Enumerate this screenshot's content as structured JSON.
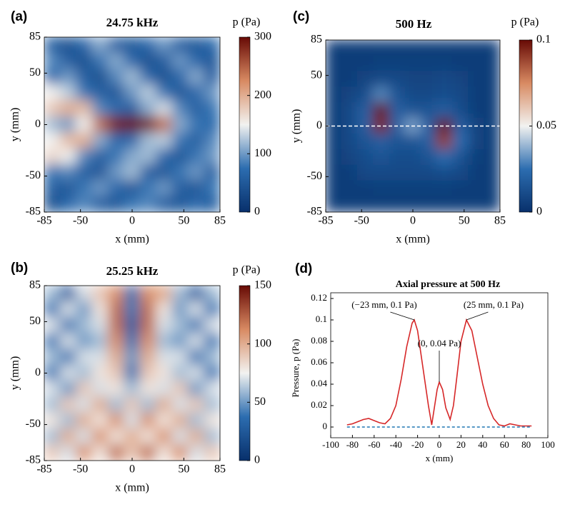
{
  "chart_data": [
    {
      "type": "heatmap",
      "panel_label": "(a)",
      "title": "24.75 kHz",
      "xlabel": "x (mm)",
      "ylabel": "y (mm)",
      "colorbar_label": "p (Pa)",
      "xlim": [
        -85,
        85
      ],
      "ylim": [
        -85,
        85
      ],
      "xticks": [
        -85,
        -50,
        0,
        50,
        85
      ],
      "yticks": [
        -85,
        -50,
        0,
        50,
        85
      ],
      "clim": [
        0,
        300
      ],
      "cticks": [
        0,
        100,
        200,
        300
      ],
      "colormap": [
        "#08306b",
        "#2c6db0",
        "#f2f2f0",
        "#d88a62",
        "#670a05"
      ],
      "z": [
        [
          60,
          40,
          70,
          110,
          60,
          50,
          70,
          100,
          60,
          50,
          70
        ],
        [
          90,
          60,
          40,
          80,
          110,
          70,
          40,
          60,
          100,
          70,
          50
        ],
        [
          70,
          100,
          60,
          40,
          90,
          120,
          70,
          40,
          70,
          110,
          60
        ],
        [
          150,
          130,
          80,
          60,
          50,
          100,
          130,
          80,
          50,
          70,
          100
        ],
        [
          180,
          200,
          190,
          90,
          70,
          60,
          110,
          140,
          90,
          60,
          80
        ],
        [
          120,
          100,
          150,
          240,
          290,
          300,
          290,
          240,
          110,
          80,
          70
        ],
        [
          150,
          190,
          200,
          110,
          70,
          70,
          120,
          130,
          80,
          60,
          90
        ],
        [
          170,
          150,
          90,
          60,
          80,
          110,
          120,
          70,
          50,
          80,
          100
        ],
        [
          80,
          90,
          60,
          50,
          100,
          120,
          60,
          50,
          80,
          100,
          60
        ],
        [
          60,
          50,
          80,
          100,
          70,
          50,
          80,
          100,
          60,
          50,
          80
        ],
        [
          40,
          70,
          90,
          60,
          50,
          80,
          90,
          60,
          50,
          70,
          60
        ]
      ]
    },
    {
      "type": "heatmap",
      "panel_label": "(b)",
      "title": "25.25 kHz",
      "xlabel": "x (mm)",
      "ylabel": "y (mm)",
      "colorbar_label": "p (Pa)",
      "xlim": [
        -85,
        85
      ],
      "ylim": [
        -85,
        85
      ],
      "xticks": [
        -85,
        -50,
        0,
        50,
        85
      ],
      "yticks": [
        -85,
        -50,
        0,
        50,
        85
      ],
      "clim": [
        0,
        150
      ],
      "cticks": [
        0,
        50,
        100,
        150
      ],
      "colormap": [
        "#08306b",
        "#2c6db0",
        "#f2f2f0",
        "#d88a62",
        "#670a05"
      ],
      "z": [
        [
          60,
          30,
          70,
          90,
          110,
          40,
          110,
          100,
          60,
          30,
          60
        ],
        [
          40,
          70,
          50,
          80,
          120,
          40,
          120,
          80,
          50,
          70,
          40
        ],
        [
          70,
          40,
          60,
          70,
          120,
          30,
          120,
          70,
          60,
          40,
          70
        ],
        [
          40,
          70,
          50,
          60,
          110,
          40,
          110,
          60,
          50,
          70,
          40
        ],
        [
          60,
          40,
          70,
          70,
          100,
          50,
          100,
          70,
          70,
          40,
          60
        ],
        [
          40,
          70,
          60,
          80,
          90,
          40,
          90,
          80,
          60,
          70,
          40
        ],
        [
          70,
          50,
          90,
          70,
          80,
          60,
          80,
          70,
          90,
          50,
          70
        ],
        [
          60,
          90,
          70,
          100,
          60,
          90,
          60,
          100,
          70,
          90,
          60
        ],
        [
          80,
          60,
          100,
          80,
          110,
          70,
          110,
          80,
          100,
          60,
          80
        ],
        [
          60,
          100,
          70,
          110,
          80,
          100,
          80,
          110,
          70,
          100,
          60
        ],
        [
          90,
          70,
          110,
          80,
          120,
          90,
          120,
          80,
          110,
          70,
          90
        ]
      ]
    },
    {
      "type": "heatmap",
      "panel_label": "(c)",
      "title": "500 Hz",
      "xlabel": "x (mm)",
      "ylabel": "y (mm)",
      "colorbar_label": "p (Pa)",
      "xlim": [
        -85,
        85
      ],
      "ylim": [
        -85,
        85
      ],
      "xticks": [
        -85,
        -50,
        0,
        50,
        85
      ],
      "yticks": [
        -85,
        -50,
        0,
        50,
        85
      ],
      "clim": [
        0,
        0.1
      ],
      "cticks": [
        0,
        0.05,
        0.1
      ],
      "colormap": [
        "#08306b",
        "#2c6db0",
        "#f2f2f0",
        "#d88a62",
        "#670a05"
      ],
      "guide_line": {
        "y": 0,
        "color": "#ffffff"
      },
      "z": [
        [
          0.005,
          0.005,
          0.005,
          0.005,
          0.005,
          0.005,
          0.005,
          0.005,
          0.005,
          0.005,
          0.005
        ],
        [
          0.005,
          0.005,
          0.005,
          0.006,
          0.006,
          0.006,
          0.006,
          0.006,
          0.005,
          0.005,
          0.005
        ],
        [
          0.005,
          0.005,
          0.008,
          0.01,
          0.01,
          0.008,
          0.008,
          0.01,
          0.008,
          0.005,
          0.005
        ],
        [
          0.005,
          0.008,
          0.012,
          0.03,
          0.015,
          0.01,
          0.01,
          0.012,
          0.01,
          0.005,
          0.005
        ],
        [
          0.005,
          0.01,
          0.02,
          0.1,
          0.02,
          0.015,
          0.015,
          0.02,
          0.012,
          0.005,
          0.005
        ],
        [
          0.005,
          0.01,
          0.02,
          0.095,
          0.02,
          0.035,
          0.02,
          0.1,
          0.02,
          0.008,
          0.005
        ],
        [
          0.005,
          0.01,
          0.015,
          0.02,
          0.015,
          0.015,
          0.02,
          0.09,
          0.025,
          0.008,
          0.005
        ],
        [
          0.005,
          0.008,
          0.012,
          0.015,
          0.012,
          0.012,
          0.015,
          0.025,
          0.015,
          0.006,
          0.005
        ],
        [
          0.005,
          0.005,
          0.01,
          0.01,
          0.01,
          0.01,
          0.01,
          0.012,
          0.01,
          0.005,
          0.005
        ],
        [
          0.005,
          0.005,
          0.005,
          0.006,
          0.006,
          0.006,
          0.006,
          0.006,
          0.005,
          0.005,
          0.005
        ],
        [
          0.005,
          0.005,
          0.005,
          0.005,
          0.005,
          0.005,
          0.005,
          0.005,
          0.005,
          0.005,
          0.005
        ]
      ]
    },
    {
      "type": "line",
      "panel_label": "(d)",
      "title": "Axial pressure at 500 Hz",
      "xlabel": "x (mm)",
      "ylabel": "Pressure, p (Pa)",
      "xlim": [
        -100,
        100
      ],
      "ylim": [
        -0.01,
        0.12
      ],
      "xticks": [
        -100,
        -80,
        -60,
        -40,
        -20,
        0,
        20,
        40,
        60,
        80,
        100
      ],
      "yticks": [
        0,
        0.02,
        0.04,
        0.06,
        0.08,
        0.1,
        0.12
      ],
      "series": [
        {
          "color": "#d62728",
          "dashed": false,
          "x": [
            -85,
            -80,
            -75,
            -70,
            -65,
            -60,
            -55,
            -50,
            -45,
            -40,
            -35,
            -30,
            -25,
            -23,
            -20,
            -15,
            -10,
            -7,
            -5,
            -2,
            0,
            3,
            6,
            10,
            13,
            16,
            20,
            25,
            30,
            35,
            40,
            45,
            50,
            55,
            60,
            65,
            70,
            75,
            80,
            85
          ],
          "values": [
            0.002,
            0.003,
            0.005,
            0.007,
            0.008,
            0.006,
            0.004,
            0.003,
            0.008,
            0.02,
            0.045,
            0.075,
            0.097,
            0.1,
            0.09,
            0.055,
            0.02,
            0.002,
            0.015,
            0.035,
            0.042,
            0.035,
            0.018,
            0.007,
            0.02,
            0.045,
            0.08,
            0.1,
            0.09,
            0.065,
            0.04,
            0.02,
            0.008,
            0.002,
            0.001,
            0.003,
            0.002,
            0.001,
            0.001,
            0.001
          ]
        },
        {
          "color": "#1f77b4",
          "dashed": true,
          "x": [
            -85,
            85
          ],
          "values": [
            0,
            0
          ]
        }
      ],
      "annotations": [
        {
          "text": "(−23 mm, 0.1 Pa)",
          "x": -23,
          "y": 0.1
        },
        {
          "text": "(25 mm, 0.1 Pa)",
          "x": 25,
          "y": 0.1
        },
        {
          "text": "(0, 0.04 Pa)",
          "x": 0,
          "y": 0.042
        }
      ]
    }
  ]
}
